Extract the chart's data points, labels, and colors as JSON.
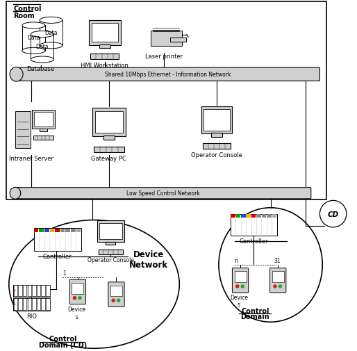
{
  "bg_color": "#ffffff",
  "light_gray": "#d0d0d0",
  "eth_network_label": "Shared 10Mbps Ethernet - Information Network",
  "low_speed_label": "Low Speed Control Network",
  "device_network_label": "Device\nNetwork",
  "control_domain_label": "Control\nDomain (CD)",
  "control_domain2_label": "Control\nDomain",
  "cd_circle_label": "CD",
  "database_label": "Database",
  "hmi_label": "HMI Workstation",
  "printer_label": "Laser printer",
  "intranet_label": "Intranet Server",
  "gateway_label": "Gateway PC",
  "op_console_label": "Operator Console",
  "controller_label": "Controller",
  "op_console2_label": "Operator Console",
  "rio_label": "RIO",
  "devices_label": "Device\ns",
  "devices2_label": "Device\ns",
  "controller2_label": "Controller"
}
